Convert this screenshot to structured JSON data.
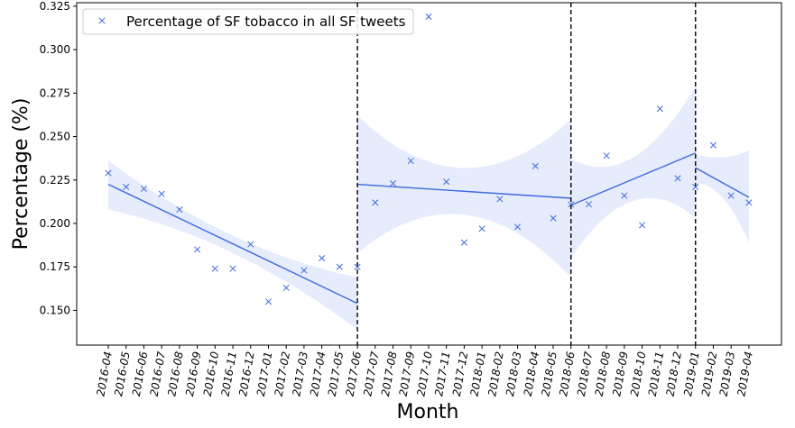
{
  "chart_data": {
    "type": "scatter",
    "title": "",
    "xlabel": "Month",
    "ylabel": "Percentage (%)",
    "ylim": [
      0.13,
      0.327
    ],
    "yticks": [
      "0.150",
      "0.175",
      "0.200",
      "0.225",
      "0.250",
      "0.275",
      "0.300",
      "0.325"
    ],
    "categories": [
      "2016-04",
      "2016-05",
      "2016-06",
      "2016-07",
      "2016-08",
      "2016-09",
      "2016-10",
      "2016-11",
      "2016-12",
      "2017-01",
      "2017-02",
      "2017-03",
      "2017-04",
      "2017-05",
      "2017-06",
      "2017-07",
      "2017-08",
      "2017-09",
      "2017-10",
      "2017-11",
      "2017-12",
      "2018-01",
      "2018-02",
      "2018-03",
      "2018-04",
      "2018-05",
      "2018-06",
      "2018-07",
      "2018-08",
      "2018-09",
      "2018-10",
      "2018-11",
      "2018-12",
      "2019-01",
      "2019-02",
      "2019-03",
      "2019-04"
    ],
    "series": [
      {
        "name": "Percentage of SF tobacco in all SF tweets",
        "marker": "x",
        "color": "#4169e1",
        "values": [
          0.229,
          0.221,
          0.22,
          0.217,
          0.208,
          0.185,
          0.174,
          0.174,
          0.188,
          0.155,
          0.163,
          0.173,
          0.18,
          0.175,
          0.175,
          0.212,
          0.223,
          0.236,
          0.319,
          0.224,
          0.189,
          0.197,
          0.214,
          0.198,
          0.233,
          0.203,
          0.211,
          0.211,
          0.239,
          0.216,
          0.199,
          0.266,
          0.226,
          0.221,
          0.245,
          0.216,
          0.212
        ]
      }
    ],
    "trend_segments": [
      {
        "from": "2016-04",
        "to": "2017-06",
        "start": 0.2225,
        "end": 0.154,
        "ci_start": [
          0.208,
          0.236
        ],
        "ci_mid": [
          0.183,
          0.193
        ],
        "ci_end": [
          0.139,
          0.169
        ]
      },
      {
        "from": "2017-06",
        "to": "2018-06",
        "start": 0.2225,
        "end": 0.2145,
        "ci_start": [
          0.183,
          0.262
        ],
        "ci_mid": [
          0.205,
          0.232
        ],
        "ci_end": [
          0.169,
          0.26
        ]
      },
      {
        "from": "2018-06",
        "to": "2019-01",
        "start": 0.2105,
        "end": 0.2405,
        "ci_start": [
          0.18,
          0.237
        ],
        "ci_mid": [
          0.213,
          0.238
        ],
        "ci_end": [
          0.203,
          0.279
        ]
      },
      {
        "from": "2019-01",
        "to": "2019-04",
        "start": 0.232,
        "end": 0.215,
        "ci_start": [
          0.223,
          0.24
        ],
        "ci_mid": [
          0.215,
          0.238
        ],
        "ci_end": [
          0.189,
          0.242
        ]
      }
    ],
    "vertical_lines": [
      "2017-06",
      "2018-06",
      "2019-01"
    ],
    "legend_position": "top-left",
    "grid": false
  }
}
